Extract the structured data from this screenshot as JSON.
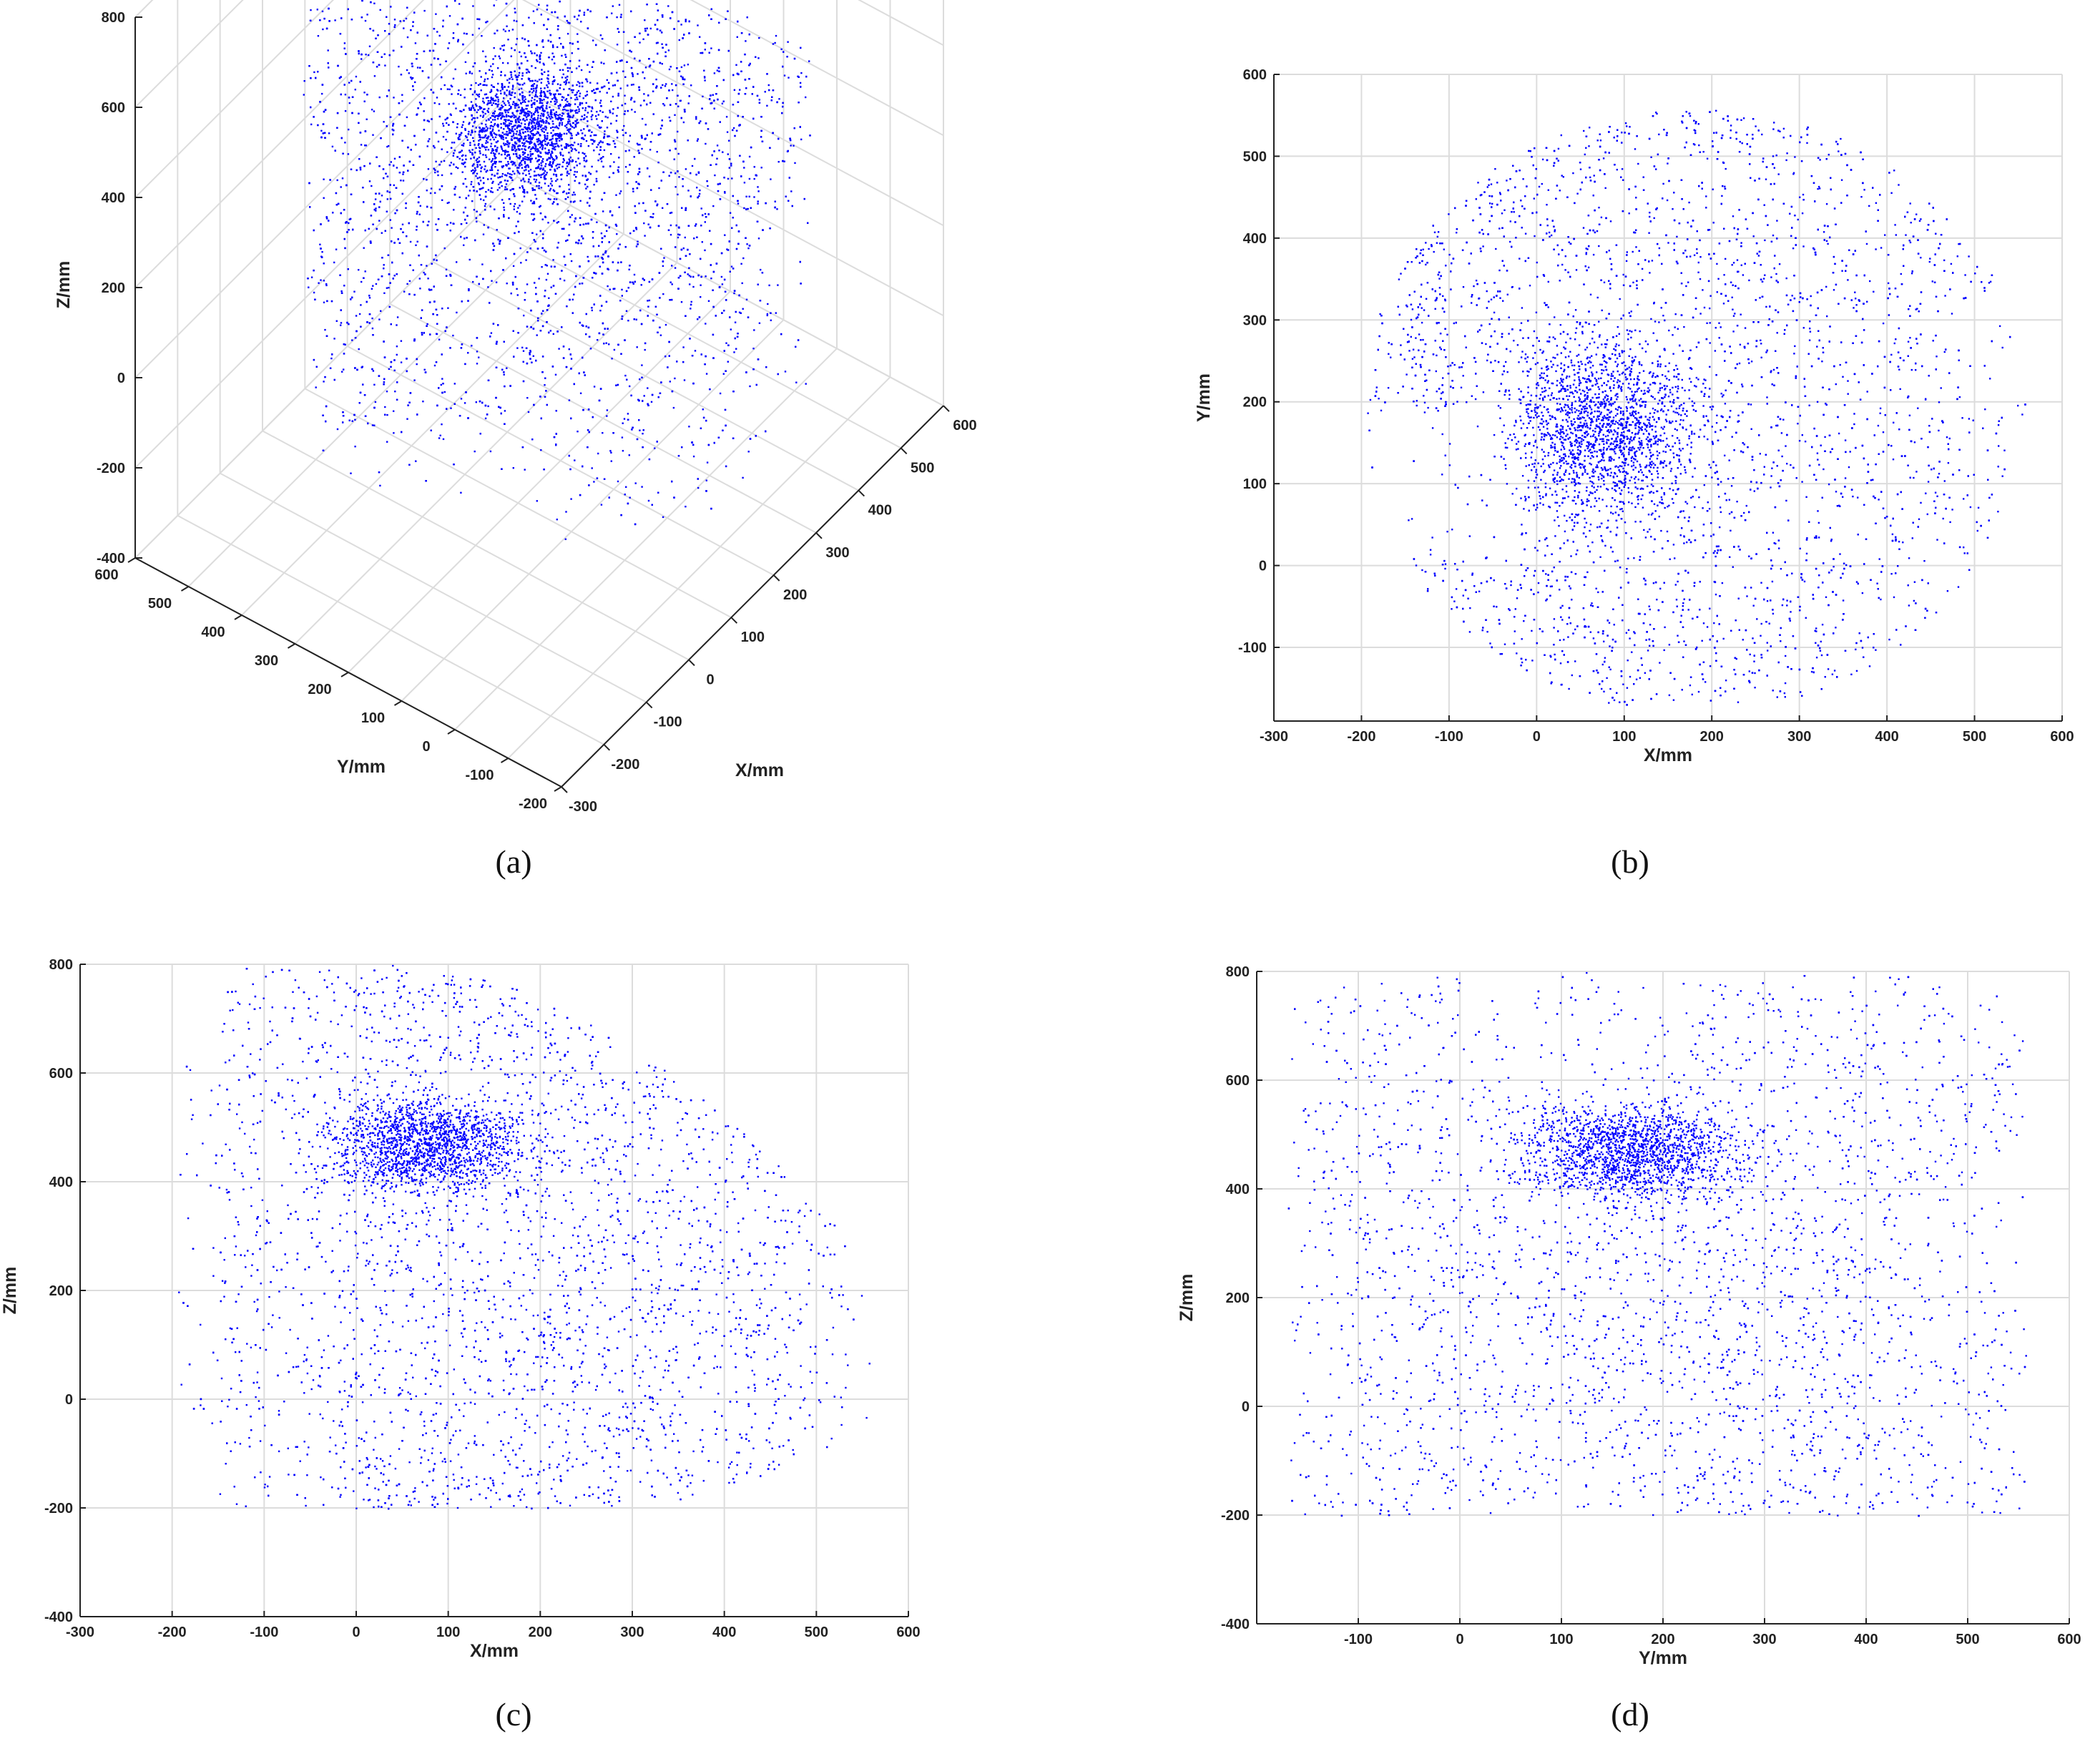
{
  "chart_data": [
    {
      "id": "a",
      "caption": "(a)",
      "type": "scatter3d",
      "xlabel": "X/mm",
      "ylabel": "Y/mm",
      "zlabel": "Z/mm",
      "xlim": [
        -300,
        600
      ],
      "ylim": [
        -200,
        600
      ],
      "zlim": [
        -400,
        800
      ],
      "xticks": [
        -300,
        -200,
        -100,
        0,
        100,
        200,
        300,
        400,
        500,
        600
      ],
      "yticks": [
        -200,
        -100,
        0,
        100,
        200,
        300,
        400,
        500,
        600
      ],
      "zticks": [
        -400,
        -200,
        0,
        200,
        400,
        600,
        800
      ],
      "grid": true,
      "marker_color": "#0000ff"
    },
    {
      "id": "b",
      "caption": "(b)",
      "type": "scatter",
      "projection": "X-Y",
      "xlabel": "X/mm",
      "ylabel": "Y/mm",
      "xlim": [
        -300,
        600
      ],
      "ylim": [
        -190,
        600
      ],
      "xticks": [
        -300,
        -200,
        -100,
        0,
        100,
        200,
        300,
        400,
        500,
        600
      ],
      "yticks": [
        -100,
        0,
        100,
        200,
        300,
        400,
        500,
        600
      ],
      "grid": true,
      "marker_color": "#0000ff"
    },
    {
      "id": "c",
      "caption": "(c)",
      "type": "scatter",
      "projection": "X-Z",
      "xlabel": "X/mm",
      "ylabel": "Z/mm",
      "xlim": [
        -300,
        600
      ],
      "ylim": [
        -400,
        800
      ],
      "xticks": [
        -300,
        -200,
        -100,
        0,
        100,
        200,
        300,
        400,
        500,
        600
      ],
      "yticks": [
        -400,
        -200,
        0,
        200,
        400,
        600,
        800
      ],
      "grid": true,
      "marker_color": "#0000ff"
    },
    {
      "id": "d",
      "caption": "(d)",
      "type": "scatter",
      "projection": "Y-Z",
      "xlabel": "Y/mm",
      "ylabel": "Z/mm",
      "xlim": [
        -200,
        600
      ],
      "ylim": [
        -400,
        800
      ],
      "xticks": [
        -100,
        0,
        100,
        200,
        300,
        400,
        500,
        600
      ],
      "yticks": [
        -400,
        -200,
        0,
        200,
        400,
        600,
        800
      ],
      "grid": true,
      "marker_color": "#0000ff"
    }
  ]
}
